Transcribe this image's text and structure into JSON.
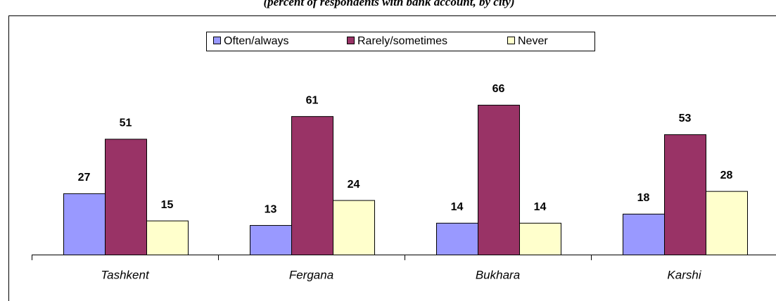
{
  "chart_data": {
    "type": "bar",
    "subtitle": "(percent of respondents with bank account, by city)",
    "categories": [
      "Tashkent",
      "Fergana",
      "Bukhara",
      "Karshi"
    ],
    "series": [
      {
        "name": "Often/always",
        "color": "#9999ff",
        "values": [
          27,
          13,
          14,
          18
        ]
      },
      {
        "name": "Rarely/sometimes",
        "color": "#993366",
        "values": [
          51,
          61,
          66,
          53
        ]
      },
      {
        "name": "Never",
        "color": "#ffffcc",
        "values": [
          15,
          24,
          14,
          28
        ]
      }
    ],
    "legend": "top"
  }
}
